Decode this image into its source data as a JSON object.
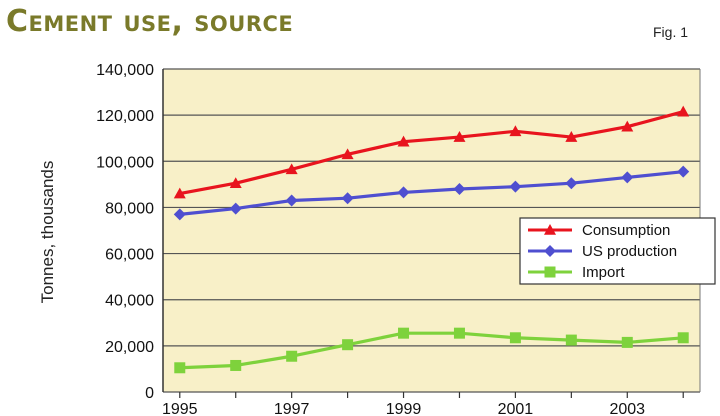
{
  "title": "Cement use, source",
  "fig_label": "Fig. 1",
  "colors": {
    "plot_background": "#f8f0c8",
    "grid": "#555555",
    "consumption": "#e8141e",
    "us_production": "#4f4fd0",
    "import": "#7ed23c"
  },
  "chart_data": {
    "type": "line",
    "title": "Cement use, source",
    "ylabel": "Tonnes, thousands",
    "xlabel": "",
    "x": [
      1995,
      1996,
      1997,
      1998,
      1999,
      2000,
      2001,
      2002,
      2003,
      2004
    ],
    "xlim": [
      1994.7,
      2004.3
    ],
    "ylim": [
      0,
      140000
    ],
    "xticks": [
      1995,
      1997,
      1999,
      2001,
      2003
    ],
    "xtick_labels": [
      "1995",
      "1997",
      "1999",
      "2001",
      "2003"
    ],
    "yticks": [
      0,
      20000,
      40000,
      60000,
      80000,
      100000,
      120000,
      140000
    ],
    "ytick_labels": [
      "0",
      "20,000",
      "40,000",
      "60,000",
      "80,000",
      "100,000",
      "120,000",
      "140,000"
    ],
    "grid": "horizontal",
    "legend": "right",
    "series": [
      {
        "name": "Consumption",
        "marker": "triangle",
        "color": "#e8141e",
        "values": [
          86000,
          90500,
          96500,
          103000,
          108500,
          110500,
          113000,
          110500,
          115000,
          121500
        ]
      },
      {
        "name": "US production",
        "marker": "diamond",
        "color": "#4f4fd0",
        "values": [
          77000,
          79500,
          83000,
          84000,
          86500,
          88000,
          89000,
          90500,
          93000,
          95500
        ]
      },
      {
        "name": "Import",
        "marker": "square",
        "color": "#7ed23c",
        "values": [
          10500,
          11500,
          15500,
          20500,
          25500,
          25500,
          23500,
          22500,
          21500,
          23500
        ]
      }
    ]
  }
}
